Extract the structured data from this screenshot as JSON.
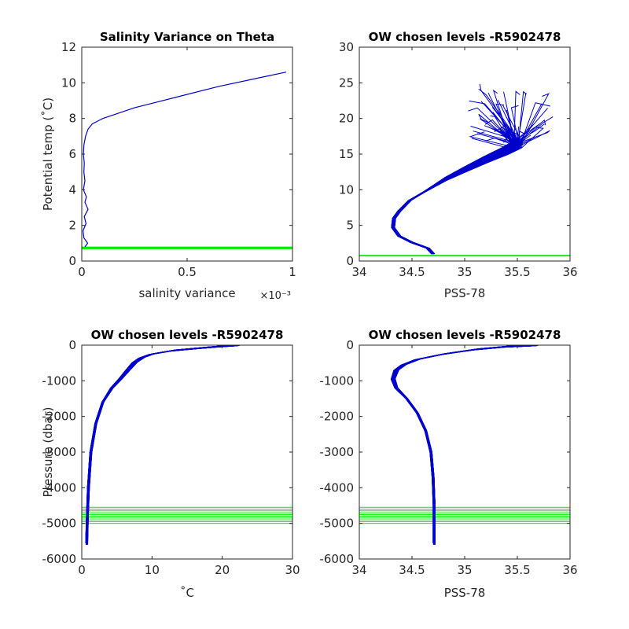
{
  "chart_data": [
    {
      "type": "line",
      "title": "Salinity Variance on Theta",
      "xlabel": "salinity variance",
      "x_exponent_label": "×10⁻³",
      "ylabel": "Potential temp (˚C)",
      "xlim": [
        0,
        1
      ],
      "ylim": [
        0,
        12
      ],
      "xticks": [
        0,
        0.5,
        1
      ],
      "xtick_labels": [
        "0",
        "0.5",
        "1"
      ],
      "yticks": [
        0,
        2,
        4,
        6,
        8,
        10,
        12
      ],
      "grid": false,
      "series": [
        {
          "color": "#0000cc",
          "x": [
            0.015,
            0.028,
            0.01,
            0.006,
            0.02,
            0.012,
            0.03,
            0.015,
            0.022,
            0.008,
            0.015,
            0.01,
            0.012,
            0.008,
            0.01,
            0.018,
            0.03,
            0.05,
            0.1,
            0.25,
            0.45,
            0.65,
            0.85,
            0.97
          ],
          "y": [
            0.8,
            1.0,
            1.3,
            1.7,
            2.1,
            2.5,
            2.9,
            3.3,
            3.6,
            4.0,
            4.5,
            5.0,
            5.5,
            6.0,
            6.5,
            7.0,
            7.4,
            7.7,
            8.0,
            8.6,
            9.2,
            9.8,
            10.3,
            10.6
          ]
        }
      ],
      "reference_lines": [
        {
          "color": "#00ee00",
          "axis": "y",
          "values": [
            0.7,
            0.72,
            0.74,
            0.76,
            0.78
          ]
        }
      ]
    },
    {
      "type": "line",
      "title": "OW chosen levels -R5902478",
      "xlabel": "PSS-78",
      "ylabel": "",
      "xlim": [
        34,
        36
      ],
      "ylim": [
        0,
        30
      ],
      "xticks": [
        34,
        34.5,
        35,
        35.5,
        36
      ],
      "xtick_labels": [
        "34",
        "34.5",
        "35",
        "35.5",
        "36"
      ],
      "yticks": [
        0,
        5,
        10,
        15,
        20,
        25,
        30
      ],
      "grid": false,
      "profile_count": 60,
      "series": [
        {
          "name_hint": "mean profile",
          "color": "#0000cc",
          "x": [
            34.7,
            34.65,
            34.5,
            34.38,
            34.32,
            34.33,
            34.38,
            34.48,
            34.65,
            34.82,
            35.0,
            35.2,
            35.4,
            35.5
          ],
          "y": [
            1.0,
            1.8,
            2.6,
            3.5,
            4.7,
            6.0,
            7.0,
            8.5,
            10.0,
            11.5,
            12.8,
            14.2,
            15.5,
            16.3
          ]
        }
      ],
      "reference_lines": [
        {
          "color": "#00ee00",
          "axis": "y",
          "values": [
            0.7,
            0.75,
            0.8
          ]
        }
      ]
    },
    {
      "type": "line",
      "title": "OW chosen levels -R5902478",
      "xlabel": "˚C",
      "ylabel": "Pressure (dbar)",
      "xlim": [
        0,
        30
      ],
      "ylim": [
        -6000,
        0
      ],
      "xticks": [
        0,
        10,
        20,
        30
      ],
      "xtick_labels": [
        "0",
        "10",
        "20",
        "30"
      ],
      "yticks": [
        -6000,
        -5000,
        -4000,
        -3000,
        -2000,
        -1000,
        0
      ],
      "grid": false,
      "profile_count": 60,
      "series": [
        {
          "name_hint": "mean profile",
          "color": "#0000cc",
          "x": [
            0.7,
            0.8,
            0.95,
            1.3,
            2.0,
            3.0,
            4.3,
            5.5,
            6.6,
            7.6,
            8.6,
            10.0,
            13.0,
            17.0,
            20.0,
            22.5
          ],
          "y": [
            -5550,
            -4800,
            -4000,
            -3000,
            -2200,
            -1600,
            -1200,
            -950,
            -700,
            -480,
            -350,
            -250,
            -150,
            -80,
            -30,
            0
          ]
        }
      ],
      "reference_lines": [
        {
          "color": "#00ee00",
          "axis": "y",
          "values": [
            -4550,
            -4600,
            -4650,
            -4700,
            -4750,
            -4800,
            -4850,
            -4900,
            -4950,
            -5000
          ]
        }
      ]
    },
    {
      "type": "line",
      "title": "OW chosen levels -R5902478",
      "xlabel": "PSS-78",
      "ylabel": "",
      "xlim": [
        34,
        36
      ],
      "ylim": [
        -6000,
        0
      ],
      "xticks": [
        34,
        34.5,
        35,
        35.5,
        36
      ],
      "xtick_labels": [
        "34",
        "34.5",
        "35",
        "35.5",
        "36"
      ],
      "yticks": [
        -6000,
        -5000,
        -4000,
        -3000,
        -2000,
        -1000,
        0
      ],
      "grid": false,
      "profile_count": 60,
      "series": [
        {
          "name_hint": "mean profile",
          "color": "#0000cc",
          "x": [
            34.71,
            34.71,
            34.7,
            34.68,
            34.63,
            34.55,
            34.45,
            34.35,
            34.32,
            34.35,
            34.42,
            34.55,
            34.8,
            35.1,
            35.4,
            35.7
          ],
          "y": [
            -5550,
            -4500,
            -3700,
            -3000,
            -2400,
            -1900,
            -1500,
            -1200,
            -950,
            -700,
            -550,
            -400,
            -250,
            -120,
            -40,
            0
          ]
        }
      ],
      "reference_lines": [
        {
          "color": "#00ee00",
          "axis": "y",
          "values": [
            -4550,
            -4600,
            -4650,
            -4700,
            -4750,
            -4800,
            -4850,
            -4900,
            -4950,
            -5000
          ]
        }
      ]
    }
  ]
}
